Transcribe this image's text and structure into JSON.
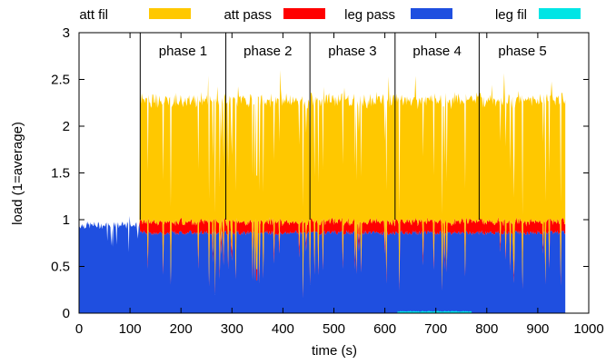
{
  "chart_data": {
    "type": "area",
    "xlabel": "time (s)",
    "ylabel": "load (1=average)",
    "xlim": [
      0,
      1000
    ],
    "ylim": [
      0,
      3
    ],
    "x_ticks": [
      0,
      100,
      200,
      300,
      400,
      500,
      600,
      700,
      800,
      900,
      1000
    ],
    "y_ticks": [
      0,
      0.5,
      1,
      1.5,
      2,
      2.5,
      3
    ],
    "y_tick_labels": [
      "0",
      "0.5",
      "1",
      "1.5",
      "2",
      "2.5",
      "3"
    ],
    "grid": false,
    "legend_position": "top",
    "series": [
      {
        "name": "att fil",
        "color": "#ffc800",
        "kind": "stacked"
      },
      {
        "name": "att pass",
        "color": "#ff0000",
        "kind": "stacked"
      },
      {
        "name": "leg pass",
        "color": "#1f4fe0",
        "kind": "stacked"
      },
      {
        "name": "leg fil",
        "color": "#00e5e5",
        "kind": "stacked"
      }
    ],
    "phases": [
      {
        "label": "phase 1",
        "start": 120,
        "end": 288
      },
      {
        "label": "phase 2",
        "start": 288,
        "end": 453
      },
      {
        "label": "phase 3",
        "start": 453,
        "end": 620
      },
      {
        "label": "phase 4",
        "start": 620,
        "end": 785
      },
      {
        "label": "phase 5",
        "start": 785,
        "end": 955
      }
    ],
    "approx_levels": [
      {
        "x": [
          0,
          120
        ],
        "leg_pass": 0.95,
        "att_pass": 0.0,
        "att_fil": 0.0
      },
      {
        "x": [
          120,
          955
        ],
        "leg_pass": 0.88,
        "att_pass": 0.12,
        "att_fil": 1.3
      },
      {
        "x": [
          625,
          770
        ],
        "leg_fil": 0.02
      }
    ]
  }
}
